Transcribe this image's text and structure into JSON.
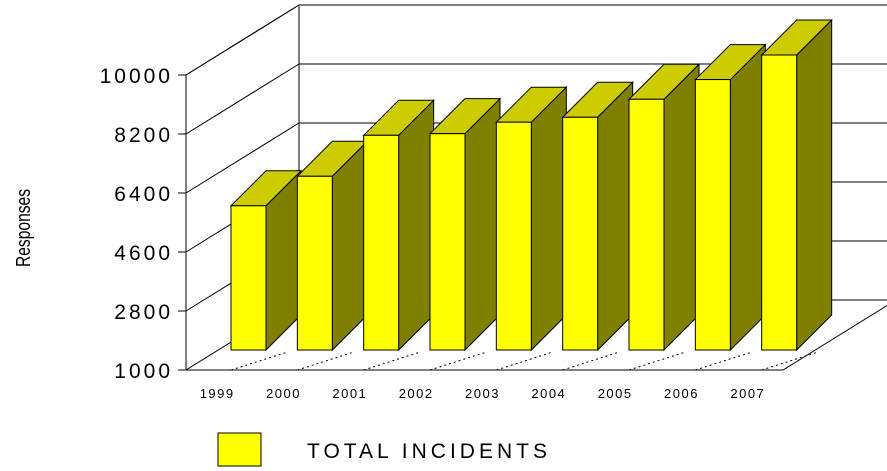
{
  "chart_data": {
    "type": "bar",
    "title": "",
    "xlabel": "",
    "ylabel": "Responses",
    "categories": [
      "1999",
      "2000",
      "2001",
      "2002",
      "2003",
      "2004",
      "2005",
      "2006",
      "2007"
    ],
    "series": [
      {
        "name": "TOTAL INCIDENTS",
        "values": [
          5400,
          6300,
          7550,
          7600,
          7950,
          8100,
          8650,
          9250,
          10000
        ],
        "color": "#ffff00",
        "side_color": "#808000"
      }
    ],
    "ylim": [
      1000,
      10000
    ],
    "yticks": [
      "1000",
      "2800",
      "4600",
      "6400",
      "8200",
      "10000"
    ],
    "grid": true,
    "legend": "bottom"
  }
}
